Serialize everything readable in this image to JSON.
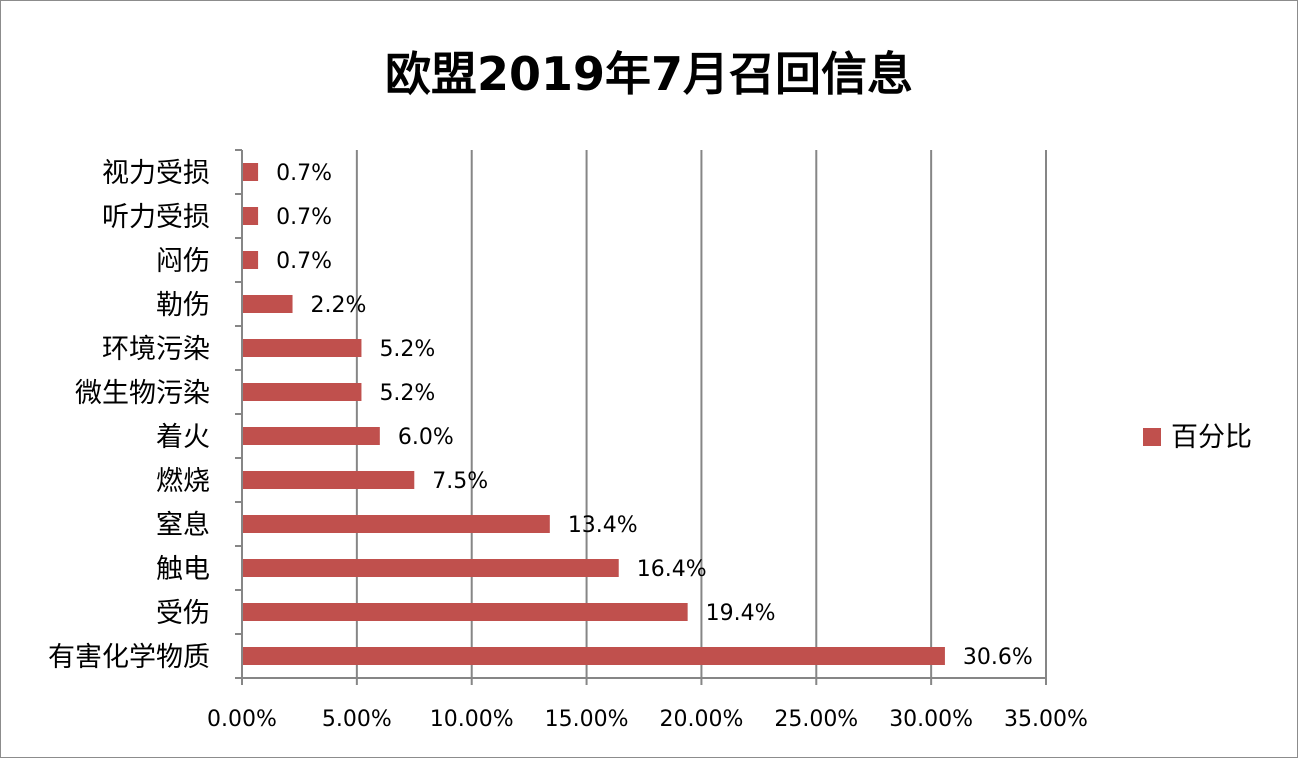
{
  "chart_data": {
    "type": "bar",
    "orientation": "horizontal",
    "title": "欧盟2019年7月召回信息",
    "categories": [
      "有害化学物质",
      "受伤",
      "触电",
      "窒息",
      "燃烧",
      "着火",
      "微生物污染",
      "环境污染",
      "勒伤",
      "闷伤",
      "听力受损",
      "视力受损"
    ],
    "series": [
      {
        "name": "百分比",
        "values": [
          30.6,
          19.4,
          16.4,
          13.4,
          7.5,
          6.0,
          5.2,
          5.2,
          2.2,
          0.7,
          0.7,
          0.7
        ],
        "labels": [
          "30.6%",
          "19.4%",
          "16.4%",
          "13.4%",
          "7.5%",
          "6.0%",
          "5.2%",
          "5.2%",
          "2.2%",
          "0.7%",
          "0.7%",
          "0.7%"
        ],
        "color": "#c0504d"
      }
    ],
    "x_ticks": [
      "0.00%",
      "5.00%",
      "10.00%",
      "15.00%",
      "20.00%",
      "25.00%",
      "30.00%",
      "35.00%"
    ],
    "xlim": [
      0,
      35
    ],
    "grid": "vertical-major",
    "legend": "right",
    "colors": {
      "bar": "#c0504d",
      "grid": "#868686",
      "axis": "#868686"
    }
  }
}
